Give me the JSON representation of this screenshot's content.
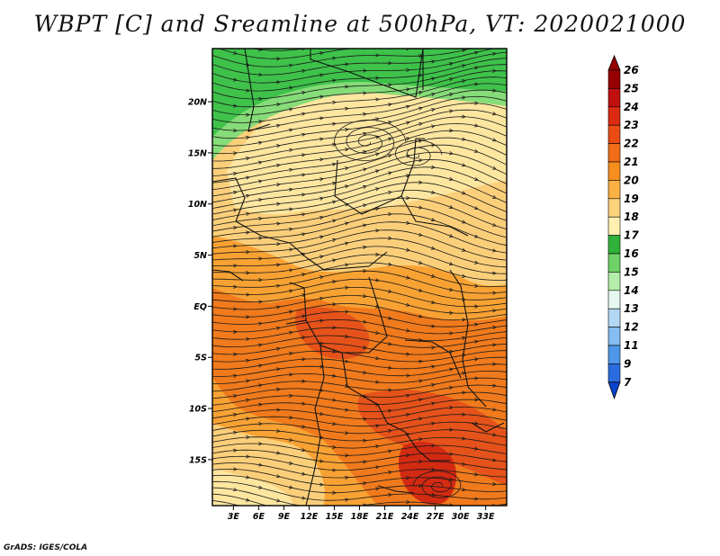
{
  "title": "WBPT [C] and Sreamline at 500hPa, VT: 2020021000",
  "credit": "GrADS: IGES/COLA",
  "map": {
    "lat_labels": [
      "20N",
      "15N",
      "10N",
      "5N",
      "EQ",
      "5S",
      "10S",
      "15S"
    ],
    "lon_labels": [
      "3E",
      "6E",
      "9E",
      "12E",
      "15E",
      "18E",
      "21E",
      "24E",
      "27E",
      "30E",
      "33E"
    ],
    "lat_values": [
      20,
      15,
      10,
      5,
      0,
      -5,
      -10,
      -15
    ],
    "lon_values": [
      3,
      6,
      9,
      12,
      15,
      18,
      21,
      24,
      27,
      30,
      33
    ],
    "extent": {
      "lon": [
        0.5,
        35.5
      ],
      "lat": [
        -19.5,
        25.2
      ]
    }
  },
  "colorbar": {
    "labels": [
      "26",
      "25",
      "24",
      "23",
      "22",
      "21",
      "20",
      "19",
      "18",
      "17",
      "16",
      "15",
      "14",
      "13",
      "12",
      "11",
      "9",
      "7"
    ],
    "colors": [
      "#960000",
      "#c01010",
      "#dc2a12",
      "#ea4c14",
      "#f26d18",
      "#f78f1e",
      "#fbb144",
      "#fdd27c",
      "#fff0b0",
      "#2fb13a",
      "#6ed266",
      "#b4eeaa",
      "#e6f8f0",
      "#b3d8f5",
      "#84bdf2",
      "#4e97ea",
      "#2a6ce0",
      "#0a44cc"
    ],
    "top_color": "#960000",
    "bottom_color": "#0a44cc"
  },
  "field": {
    "bands": [
      {
        "name": "north-green",
        "color": "#3ec24a"
      },
      {
        "name": "north-light-green",
        "color": "#86dc78"
      },
      {
        "name": "pale-yellow",
        "color": "#fde6a0"
      },
      {
        "name": "light-orange",
        "color": "#fbcf7a"
      },
      {
        "name": "orange",
        "color": "#f8a234"
      },
      {
        "name": "deep-orange",
        "color": "#f07a1c"
      },
      {
        "name": "red-orange",
        "color": "#e5521a"
      },
      {
        "name": "red",
        "color": "#d32a12"
      }
    ]
  }
}
